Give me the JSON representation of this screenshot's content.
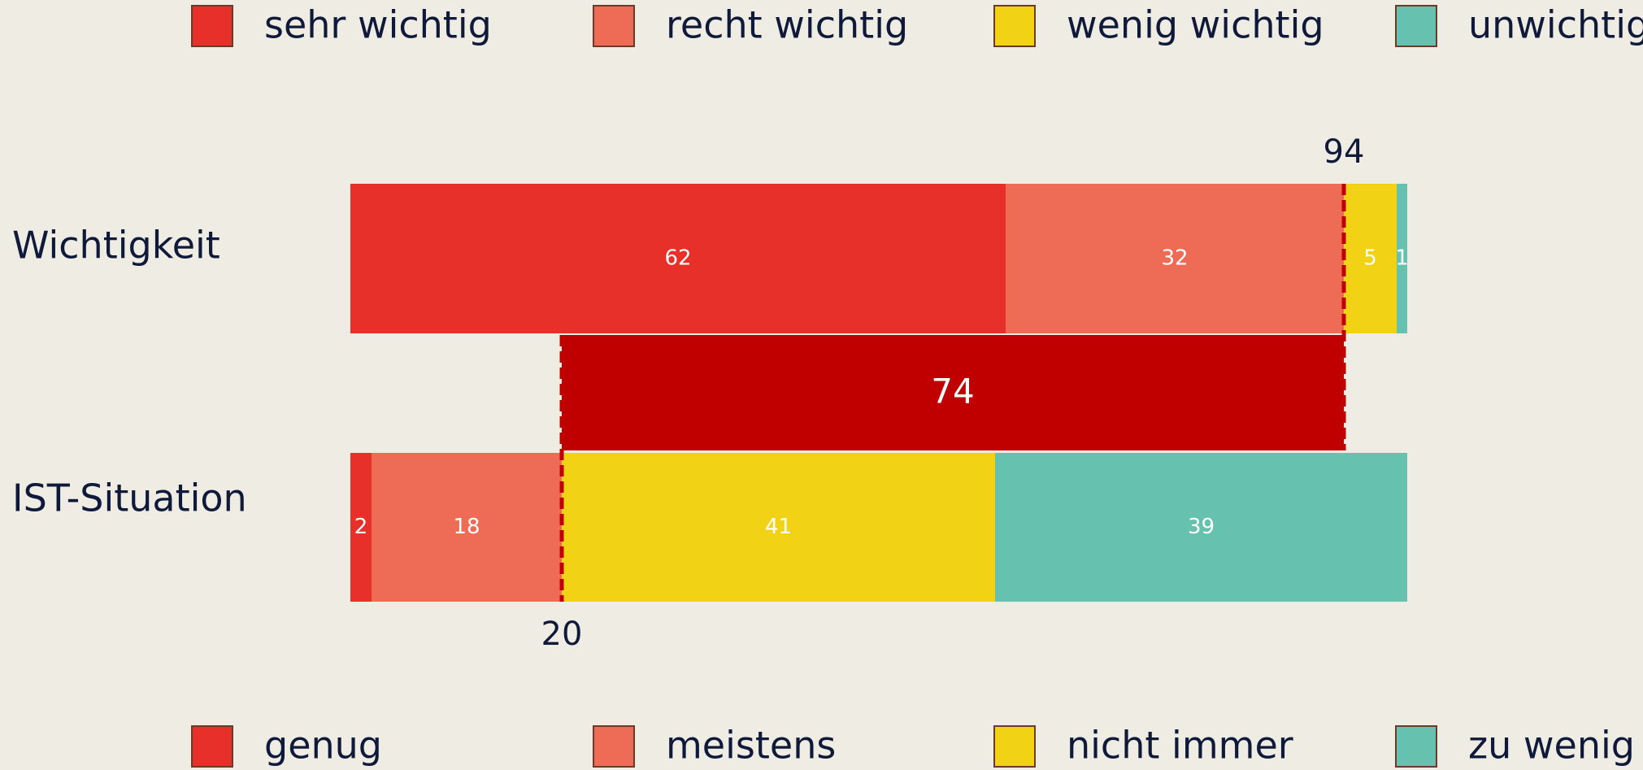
{
  "chart_data": {
    "type": "stacked-bar-horizontal",
    "xlim": [
      0,
      100
    ],
    "bars": [
      {
        "category": "Wichtigkeit",
        "segments": [
          {
            "name": "sehr wichtig",
            "color": "#e8302a",
            "value": 62
          },
          {
            "name": "recht wichtig",
            "color": "#ee6c55",
            "value": 32
          },
          {
            "name": "wenig wichtig",
            "color": "#f2d214",
            "value": 5
          },
          {
            "name": "unwichtig",
            "color": "#66c1ae",
            "value": 1
          }
        ]
      },
      {
        "category": "IST-Situation",
        "segments": [
          {
            "name": "genug",
            "color": "#e8302a",
            "value": 2
          },
          {
            "name": "meistens",
            "color": "#ee6c55",
            "value": 18
          },
          {
            "name": "nicht immer",
            "color": "#f2d214",
            "value": 41
          },
          {
            "name": "zu wenig",
            "color": "#66c1ae",
            "value": 39
          }
        ]
      }
    ],
    "gap": {
      "from": 20,
      "to": 94,
      "value": 74,
      "color": "#c00000"
    }
  }
}
